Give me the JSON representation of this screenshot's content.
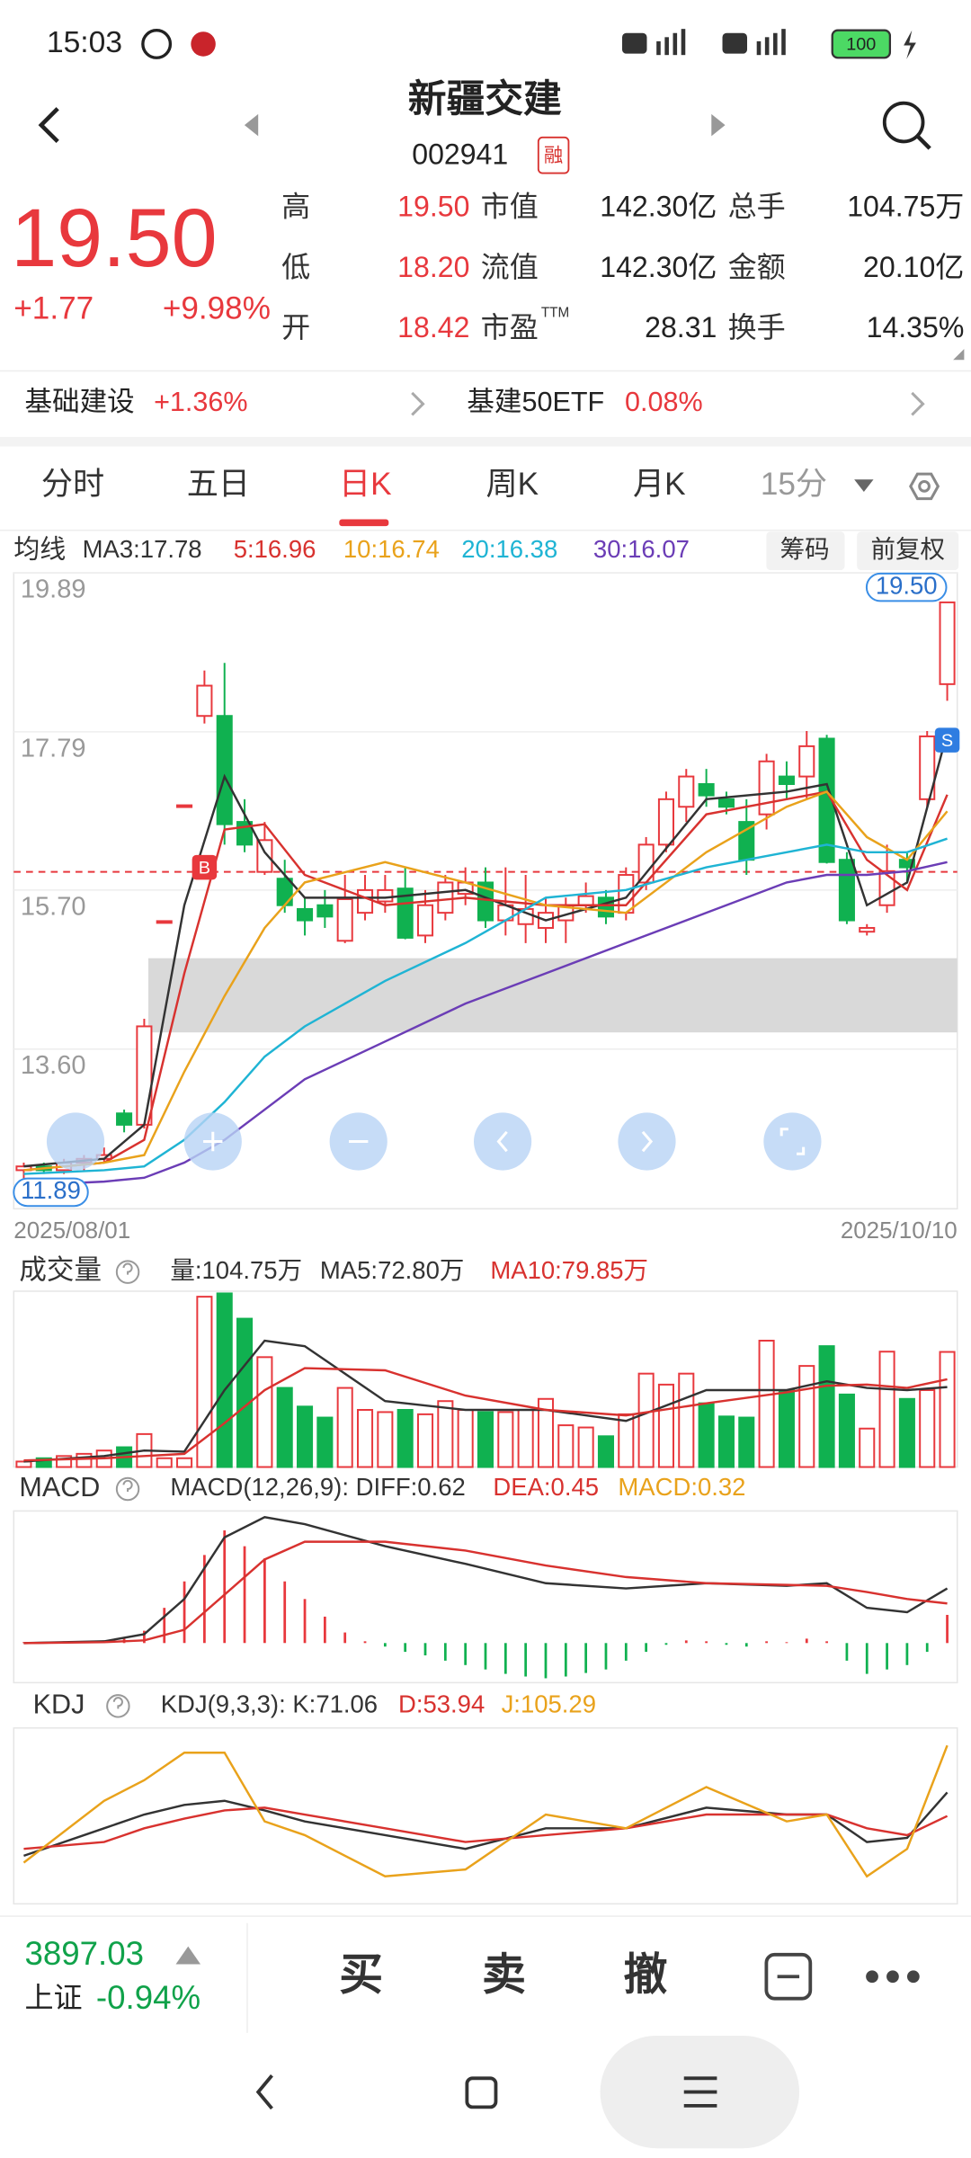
{
  "status": {
    "time": "15:03",
    "battery": "100"
  },
  "header": {
    "name": "新疆交建",
    "code": "002941",
    "tag": "融"
  },
  "quote": {
    "price": "19.50",
    "change": "+1.77",
    "pct": "+9.98%",
    "stats": [
      {
        "label": "高",
        "value": "19.50"
      },
      {
        "label": "市值",
        "value": "142.30亿"
      },
      {
        "label": "总手",
        "value": "104.75万"
      },
      {
        "label": "低",
        "value": "18.20"
      },
      {
        "label": "流值",
        "value": "142.30亿"
      },
      {
        "label": "金额",
        "value": "20.10亿"
      },
      {
        "label": "开",
        "value": "18.42"
      },
      {
        "label": "市盈",
        "sup": "TTM",
        "value": "28.31"
      },
      {
        "label": "换手",
        "value": "14.35%"
      }
    ]
  },
  "sector": [
    {
      "name": "基础建设",
      "pct": "+1.36%"
    },
    {
      "name": "基建50ETF",
      "pct": "0.08%"
    }
  ],
  "tabs": {
    "items": [
      "分时",
      "五日",
      "日K",
      "周K",
      "月K",
      "15分"
    ],
    "active": 2
  },
  "chart_data": [
    {
      "type": "candlestick",
      "label": "均线",
      "buttons": [
        "筹码",
        "前复权"
      ],
      "open": [
        12.0,
        12.05,
        12.0,
        12.1,
        12.15,
        12.75,
        12.6,
        15.29,
        16.82,
        18.0,
        18.0,
        16.6,
        15.94,
        15.85,
        15.45,
        15.5,
        15.03,
        15.4,
        15.55,
        15.72,
        15.1,
        15.4,
        15.65,
        15.8,
        15.3,
        15.25,
        15.2,
        15.3,
        15.5,
        15.6,
        15.4,
        15.8,
        16.3,
        16.8,
        17.1,
        16.9,
        16.6,
        16.7,
        17.2,
        17.2,
        17.7,
        16.1,
        15.15,
        15.5,
        16.1,
        16.9,
        18.42
      ],
      "high": [
        12.1,
        12.1,
        12.15,
        12.2,
        12.3,
        12.8,
        14.0,
        15.29,
        16.82,
        18.6,
        18.7,
        16.9,
        16.6,
        16.1,
        15.6,
        15.7,
        15.9,
        15.9,
        15.9,
        16.0,
        15.7,
        15.9,
        16.0,
        16.0,
        16.0,
        15.9,
        15.6,
        15.6,
        15.8,
        15.7,
        16.0,
        16.4,
        17.0,
        17.3,
        17.3,
        17.0,
        16.9,
        17.5,
        17.4,
        17.8,
        17.75,
        16.2,
        15.25,
        16.3,
        16.2,
        17.8,
        19.5
      ],
      "low": [
        11.89,
        11.95,
        11.95,
        12.0,
        12.1,
        12.5,
        12.55,
        15.29,
        16.82,
        17.9,
        16.3,
        16.2,
        15.9,
        15.4,
        15.1,
        15.2,
        15.0,
        15.3,
        15.4,
        15.05,
        15.0,
        15.3,
        15.5,
        15.2,
        15.1,
        15.0,
        15.0,
        15.0,
        15.4,
        15.25,
        15.3,
        15.7,
        16.2,
        16.6,
        16.8,
        16.7,
        15.9,
        16.5,
        16.9,
        16.9,
        16.05,
        15.25,
        15.1,
        15.4,
        15.8,
        16.8,
        18.2
      ],
      "close": [
        12.05,
        12.0,
        12.1,
        12.15,
        12.2,
        12.6,
        13.9,
        15.29,
        16.82,
        18.4,
        16.57,
        16.3,
        16.36,
        15.5,
        15.3,
        15.35,
        15.58,
        15.7,
        15.7,
        15.07,
        15.5,
        15.8,
        15.8,
        15.3,
        15.5,
        15.45,
        15.4,
        15.5,
        15.62,
        15.35,
        15.9,
        16.3,
        16.9,
        17.2,
        16.95,
        16.8,
        16.1,
        17.4,
        17.1,
        17.6,
        16.07,
        15.3,
        15.2,
        15.95,
        16.0,
        17.73,
        19.5
      ],
      "line_x": [
        0,
        4,
        6,
        8,
        10,
        12,
        14,
        18,
        22,
        26,
        30,
        34,
        38,
        40,
        42,
        44,
        46
      ],
      "series": [
        {
          "name": "MA3:17.78",
          "color": "#333333",
          "values": [
            12.05,
            12.15,
            12.6,
            15.5,
            17.2,
            16.2,
            15.6,
            15.6,
            15.7,
            15.3,
            15.6,
            16.9,
            17.0,
            17.1,
            15.5,
            15.8,
            17.78
          ]
        },
        {
          "name": "5:16.96",
          "color": "#d8322f",
          "values": [
            12.0,
            12.1,
            12.4,
            14.6,
            16.5,
            16.57,
            15.9,
            15.5,
            15.6,
            15.5,
            15.5,
            16.7,
            16.9,
            17.0,
            16.1,
            15.7,
            16.96
          ]
        },
        {
          "name": "10:16.74",
          "color": "#e9a21b",
          "values": [
            12.0,
            12.1,
            12.2,
            13.3,
            14.3,
            15.2,
            15.8,
            16.07,
            15.8,
            15.5,
            15.4,
            16.2,
            16.8,
            17.0,
            16.4,
            16.1,
            16.74
          ]
        },
        {
          "name": "20:16.38",
          "color": "#1fb4d4",
          "values": [
            11.95,
            12.0,
            12.05,
            12.4,
            12.9,
            13.5,
            13.9,
            14.5,
            15.0,
            15.6,
            15.7,
            16.0,
            16.2,
            16.3,
            16.2,
            16.2,
            16.38
          ]
        },
        {
          "name": "30:16.07",
          "color": "#6b3db6",
          "values": [
            11.8,
            11.85,
            11.9,
            12.1,
            12.4,
            12.8,
            13.2,
            13.7,
            14.2,
            14.6,
            15.0,
            15.4,
            15.8,
            15.9,
            15.9,
            15.95,
            16.07
          ]
        }
      ],
      "ylim": [
        11.49,
        19.89
      ],
      "yticks": [
        19.89,
        17.79,
        {
          "value": 15.7,
          "label": "15.70"
        },
        {
          "value": 13.6,
          "label": "13.60"
        }
      ],
      "grid": true,
      "max_label": {
        "value": 19.5,
        "label": "19.50"
      },
      "min_label": {
        "value": 11.89,
        "label": "11.89"
      },
      "ref_line": 15.94,
      "zone": [
        13.82,
        14.8
      ],
      "signals": [
        {
          "label": "B",
          "index": 9,
          "value": 16.0
        },
        {
          "label": "S",
          "index": 46,
          "value": 17.68
        }
      ],
      "x_labels": [
        "2025/08/01",
        "2025/10/10"
      ]
    },
    {
      "type": "bar",
      "title": "成交量",
      "value_label": "量:104.75万",
      "values": [
        5,
        8,
        10,
        12,
        15,
        18,
        30,
        8,
        8,
        155,
        158,
        135,
        100,
        72,
        55,
        45,
        72,
        52,
        50,
        52,
        48,
        60,
        52,
        50,
        50,
        52,
        62,
        38,
        36,
        28,
        48,
        85,
        75,
        85,
        58,
        46,
        45,
        115,
        70,
        92,
        110,
        66,
        35,
        105,
        62,
        70,
        104.75
      ],
      "line_x": [
        0,
        4,
        6,
        8,
        10,
        12,
        14,
        18,
        22,
        26,
        30,
        34,
        38,
        40,
        42,
        44,
        46
      ],
      "series": [
        {
          "name": "MA5:72.80万",
          "color": "#333333",
          "values": [
            5,
            10,
            15,
            14,
            70,
            115,
            110,
            60,
            52,
            52,
            42,
            70,
            70,
            78,
            72,
            70,
            72.8
          ]
        },
        {
          "name": "MA10:79.85万",
          "color": "#d8322f",
          "values": [
            6,
            8,
            10,
            12,
            40,
            70,
            90,
            88,
            65,
            52,
            47,
            58,
            68,
            74,
            75,
            72,
            79.85
          ]
        }
      ],
      "ylim": [
        0,
        160
      ]
    },
    {
      "type": "macd",
      "title": "MACD",
      "hist_label": "MACD:0.32",
      "hist_color": "#e9a21b",
      "hist": [
        0.01,
        0.01,
        0.02,
        0.02,
        0.03,
        0.05,
        0.14,
        0.4,
        0.7,
        1.0,
        1.28,
        1.1,
        0.96,
        0.7,
        0.5,
        0.3,
        0.12,
        0.02,
        -0.04,
        -0.1,
        -0.14,
        -0.2,
        -0.25,
        -0.3,
        -0.35,
        -0.38,
        -0.4,
        -0.38,
        -0.34,
        -0.3,
        -0.2,
        -0.1,
        -0.02,
        0.03,
        0.02,
        -0.02,
        -0.04,
        0.02,
        0.01,
        0.05,
        0.02,
        -0.2,
        -0.35,
        -0.3,
        -0.25,
        -0.1,
        0.32
      ],
      "line_x": [
        0,
        4,
        6,
        8,
        10,
        12,
        14,
        18,
        22,
        26,
        30,
        34,
        38,
        40,
        42,
        44,
        46
      ],
      "series": [
        {
          "name": "MACD(12,26,9): DIFF:0.62",
          "color": "#333333",
          "values": [
            0,
            0.02,
            0.1,
            0.5,
            1.2,
            1.43,
            1.35,
            1.1,
            0.9,
            0.68,
            0.62,
            0.68,
            0.65,
            0.68,
            0.4,
            0.35,
            0.62
          ]
        },
        {
          "name": "DEA:0.45",
          "color": "#d8322f",
          "values": [
            0,
            0.01,
            0.03,
            0.15,
            0.55,
            0.95,
            1.15,
            1.15,
            1.05,
            0.88,
            0.75,
            0.68,
            0.66,
            0.65,
            0.58,
            0.5,
            0.45
          ]
        }
      ],
      "ylim": [
        -0.45,
        1.5
      ]
    },
    {
      "type": "line",
      "title": "KDJ",
      "line_x": [
        0,
        4,
        6,
        8,
        10,
        12,
        14,
        18,
        22,
        26,
        30,
        34,
        38,
        40,
        42,
        44,
        46
      ],
      "series": [
        {
          "name": "KDJ(9,3,3): K:71.06",
          "color": "#333333",
          "values": [
            25,
            45,
            55,
            62,
            65,
            58,
            50,
            40,
            30,
            45,
            45,
            60,
            55,
            55,
            35,
            38,
            71.06
          ]
        },
        {
          "name": "D:53.94",
          "color": "#d8322f",
          "values": [
            30,
            35,
            45,
            52,
            58,
            60,
            55,
            45,
            35,
            40,
            45,
            55,
            55,
            55,
            45,
            40,
            53.94
          ]
        },
        {
          "name": "J:105.29",
          "color": "#e9a21b",
          "values": [
            20,
            65,
            80,
            100,
            100,
            50,
            40,
            10,
            15,
            55,
            45,
            75,
            50,
            55,
            10,
            30,
            105.29
          ]
        }
      ],
      "ylim": [
        -10,
        118
      ]
    }
  ],
  "footer": {
    "index_value": "3897.03",
    "index_name": "上证",
    "index_pct": "-0.94%",
    "actions": [
      "买",
      "卖",
      "撤"
    ]
  }
}
